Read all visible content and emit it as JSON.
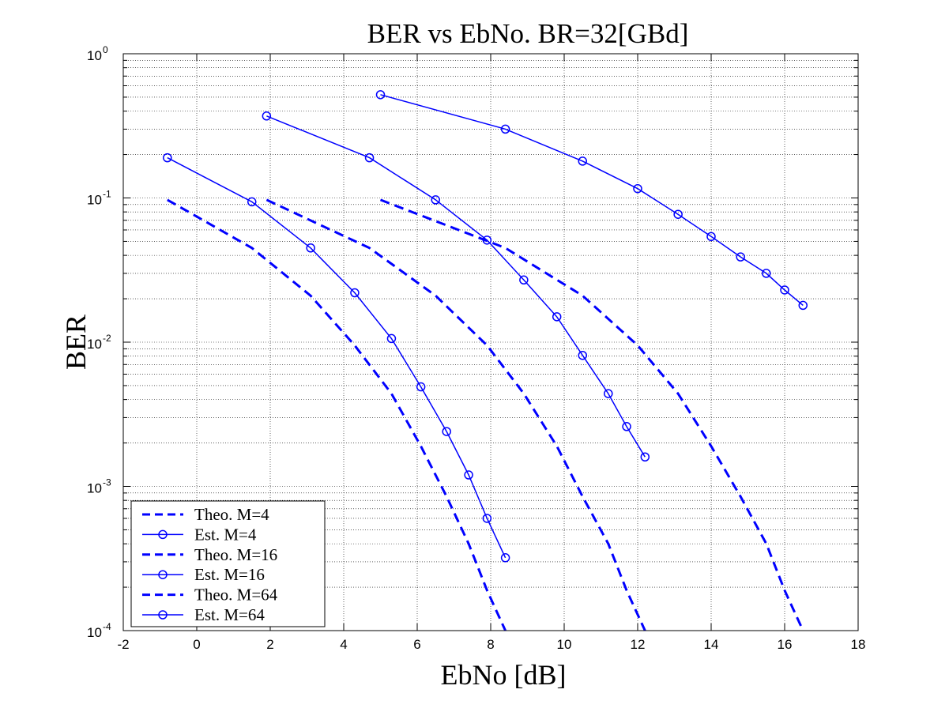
{
  "chart_data": {
    "type": "line",
    "title": "BER vs EbNo. BR=32[GBd]",
    "xlabel": "EbNo [dB]",
    "ylabel": "BER",
    "xlim": [
      -2,
      18
    ],
    "ylim": [
      0.0001,
      1
    ],
    "yscale": "log",
    "grid": true,
    "legend_position": "bottom-left",
    "xticks": [
      "-2",
      "0",
      "2",
      "4",
      "6",
      "8",
      "10",
      "12",
      "14",
      "16",
      "18"
    ],
    "yticks": [
      {
        "base": "10",
        "exp": "0"
      },
      {
        "base": "10",
        "exp": "-1"
      },
      {
        "base": "10",
        "exp": "-2"
      },
      {
        "base": "10",
        "exp": "-3"
      },
      {
        "base": "10",
        "exp": "-4"
      }
    ],
    "series": [
      {
        "name": "Theo. M=4",
        "style": "dashed",
        "color": "#0000ff",
        "x": [
          -0.8,
          1.5,
          3.1,
          4.3,
          5.3,
          6.1,
          6.8,
          7.4,
          7.9,
          8.4
        ],
        "y": [
          0.097,
          0.045,
          0.021,
          0.0095,
          0.0044,
          0.0019,
          0.00085,
          0.0004,
          0.00019,
          0.0001
        ]
      },
      {
        "name": "Est. M=4",
        "style": "solid-circle",
        "color": "#0000ff",
        "x": [
          -0.8,
          1.5,
          3.1,
          4.3,
          5.3,
          6.1,
          6.8,
          7.4,
          7.9,
          8.4
        ],
        "y": [
          0.19,
          0.094,
          0.045,
          0.022,
          0.0106,
          0.0049,
          0.0024,
          0.0012,
          0.0006,
          0.00032
        ]
      },
      {
        "name": "Theo. M=16",
        "style": "dashed",
        "color": "#0000ff",
        "x": [
          1.9,
          4.7,
          6.5,
          7.9,
          8.9,
          9.8,
          10.5,
          11.2,
          11.7,
          12.2
        ],
        "y": [
          0.097,
          0.045,
          0.021,
          0.0095,
          0.0044,
          0.0019,
          0.00085,
          0.0004,
          0.00019,
          0.0001
        ]
      },
      {
        "name": "Est. M=16",
        "style": "solid-circle",
        "color": "#0000ff",
        "x": [
          1.9,
          4.7,
          6.5,
          7.9,
          8.9,
          9.8,
          10.5,
          11.2,
          11.7,
          12.2
        ],
        "y": [
          0.37,
          0.19,
          0.097,
          0.051,
          0.027,
          0.015,
          0.0081,
          0.0044,
          0.0026,
          0.0016
        ]
      },
      {
        "name": "Theo. M=64",
        "style": "dashed",
        "color": "#0000ff",
        "x": [
          5.0,
          8.4,
          10.5,
          12.0,
          13.1,
          14.0,
          14.8,
          15.5,
          16.0,
          16.5
        ],
        "y": [
          0.097,
          0.045,
          0.021,
          0.0095,
          0.0044,
          0.0019,
          0.00085,
          0.0004,
          0.00019,
          0.0001
        ]
      },
      {
        "name": "Est. M=64",
        "style": "solid-circle",
        "color": "#0000ff",
        "x": [
          5.0,
          8.4,
          10.5,
          12.0,
          13.1,
          14.0,
          14.8,
          15.5,
          16.0,
          16.5
        ],
        "y": [
          0.52,
          0.3,
          0.18,
          0.116,
          0.077,
          0.054,
          0.039,
          0.03,
          0.023,
          0.018
        ]
      }
    ]
  }
}
